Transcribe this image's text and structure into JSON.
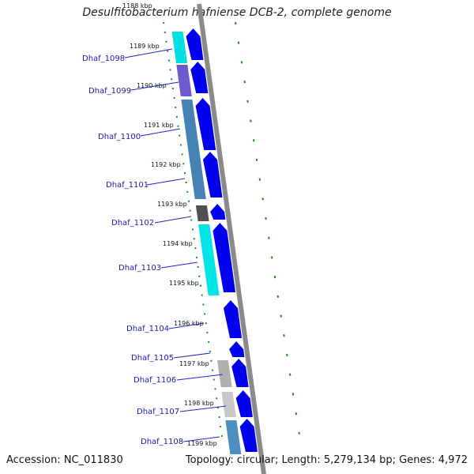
{
  "title": "Desulfitobacterium hafniense DCB-2, complete genome",
  "accession": "Accession: NC_011830",
  "summary": "Topology: circular; Length: 5,279,134 bp; Genes: 4,972",
  "colors": {
    "backbone": "#8a8a8a",
    "forward_cds": "#0000ee",
    "tick": "#228b22",
    "label_text": "#1a1aaa"
  },
  "ticks": [
    {
      "label": "1188 kbp"
    },
    {
      "label": "1189 kbp"
    },
    {
      "label": "1190 kbp"
    },
    {
      "label": "1191 kbp"
    },
    {
      "label": "1192 kbp"
    },
    {
      "label": "1193 kbp"
    },
    {
      "label": "1194 kbp"
    },
    {
      "label": "1195 kbp"
    },
    {
      "label": "1196 kbp"
    },
    {
      "label": "1197 kbp"
    },
    {
      "label": "1198 kbp"
    },
    {
      "label": "1199 kbp"
    }
  ],
  "genes": [
    {
      "label": "Dhaf_1098"
    },
    {
      "label": "Dhaf_1099"
    },
    {
      "label": "Dhaf_1100"
    },
    {
      "label": "Dhaf_1101"
    },
    {
      "label": "Dhaf_1102"
    },
    {
      "label": "Dhaf_1103"
    },
    {
      "label": "Dhaf_1104"
    },
    {
      "label": "Dhaf_1105"
    },
    {
      "label": "Dhaf_1106"
    },
    {
      "label": "Dhaf_1107"
    },
    {
      "label": "Dhaf_1108"
    }
  ]
}
